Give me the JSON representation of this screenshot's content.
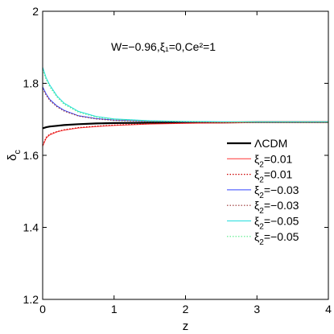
{
  "chart_data": {
    "type": "line",
    "annotation": "W=−0.96,ξ₁=0,Ce²=1",
    "xlabel": "z",
    "ylabel": "δc",
    "xlim": [
      0,
      4
    ],
    "ylim": [
      1.2,
      2.0
    ],
    "xticks": [
      0,
      1,
      2,
      3,
      4
    ],
    "yticks": [
      1.2,
      1.4,
      1.6,
      1.8,
      2.0
    ],
    "xtick_labels": [
      "0",
      "1",
      "2",
      "3",
      "4"
    ],
    "ytick_labels": [
      "1.2",
      "1.4",
      "1.6",
      "1.8",
      "2"
    ],
    "grid": false,
    "legend_position": "center-right",
    "x": [
      0,
      0.05,
      0.1,
      0.2,
      0.3,
      0.5,
      0.75,
      1.0,
      1.5,
      2.0,
      2.5,
      3.0,
      3.5,
      4.0
    ],
    "series": [
      {
        "name": "ΛCDM",
        "color": "#000000",
        "style": "solid",
        "width": 2.2,
        "values": [
          1.675,
          1.678,
          1.68,
          1.682,
          1.684,
          1.6865,
          1.6885,
          1.6895,
          1.6905,
          1.691,
          1.6915,
          1.692,
          1.692,
          1.692
        ]
      },
      {
        "name": "ξ2=0.01",
        "color": "#ff3333",
        "style": "solid",
        "width": 1,
        "values": [
          1.625,
          1.648,
          1.657,
          1.665,
          1.67,
          1.676,
          1.68,
          1.683,
          1.687,
          1.689,
          1.69,
          1.691,
          1.691,
          1.691
        ]
      },
      {
        "name": "ξ2=0.01",
        "color": "#cc0000",
        "style": "dotted",
        "width": 1.2,
        "values": [
          1.628,
          1.65,
          1.659,
          1.666,
          1.671,
          1.677,
          1.681,
          1.684,
          1.688,
          1.69,
          1.691,
          1.692,
          1.692,
          1.692
        ]
      },
      {
        "name": "ξ2=−0.03",
        "color": "#3344ff",
        "style": "solid",
        "width": 1,
        "values": [
          1.79,
          1.77,
          1.755,
          1.737,
          1.725,
          1.71,
          1.702,
          1.698,
          1.695,
          1.6935,
          1.693,
          1.6925,
          1.6925,
          1.6925
        ]
      },
      {
        "name": "ξ2=−0.03",
        "color": "#993333",
        "style": "dotted",
        "width": 1.2,
        "values": [
          1.785,
          1.767,
          1.752,
          1.735,
          1.723,
          1.709,
          1.701,
          1.697,
          1.694,
          1.693,
          1.6925,
          1.692,
          1.692,
          1.692
        ]
      },
      {
        "name": "ξ2=−0.05",
        "color": "#22dddd",
        "style": "solid",
        "width": 1,
        "values": [
          1.845,
          1.815,
          1.795,
          1.765,
          1.745,
          1.722,
          1.708,
          1.701,
          1.696,
          1.694,
          1.693,
          1.6925,
          1.6925,
          1.6925
        ]
      },
      {
        "name": "ξ2=−0.05",
        "color": "#55ee88",
        "style": "dotted",
        "width": 1.2,
        "values": [
          1.838,
          1.81,
          1.79,
          1.762,
          1.742,
          1.72,
          1.706,
          1.7,
          1.695,
          1.6935,
          1.6925,
          1.692,
          1.692,
          1.692
        ]
      }
    ]
  }
}
